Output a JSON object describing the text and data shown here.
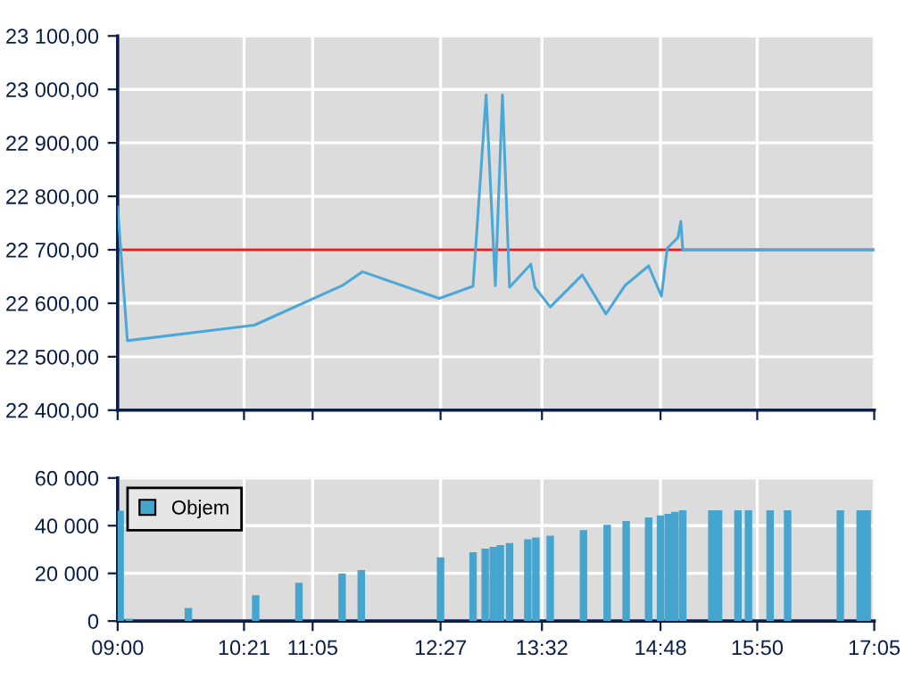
{
  "chart_data": [
    {
      "type": "line",
      "x": [
        9,
        9.104,
        10.46,
        11.398,
        11.617,
        12.436,
        12.797,
        12.937,
        13.035,
        13.111,
        13.187,
        13.414,
        13.458,
        13.622,
        13.964,
        14.217,
        14.42,
        14.673,
        14.81,
        14.872,
        14.986,
        15.017,
        15.038,
        17.0833
      ],
      "series": [
        {
          "color": "#4aa8d8",
          "values": [
            22780,
            22530,
            22559,
            22633,
            22659,
            22609,
            22632,
            22990,
            22633,
            22990,
            22630,
            22673,
            22630,
            22593,
            22653,
            22580,
            22633,
            22670,
            22613,
            22703,
            22723,
            22753,
            22700,
            22700
          ]
        }
      ],
      "ref_lines": [
        {
          "axis": "y",
          "value": 22700,
          "color": "#e02020"
        }
      ],
      "xlim": [
        9,
        17.0833
      ],
      "xticks": [
        {
          "value": 9,
          "label": null
        },
        {
          "value": 10.35,
          "label": null
        },
        {
          "value": 11.0833,
          "label": null
        },
        {
          "value": 12.45,
          "label": null
        },
        {
          "value": 13.5333,
          "label": null
        },
        {
          "value": 14.8,
          "label": null
        },
        {
          "value": 15.8333,
          "label": null
        },
        {
          "value": 17.0833,
          "label": null
        }
      ],
      "ylim": [
        22400,
        23100
      ],
      "yticks": [
        {
          "value": 22400,
          "label": "22 400,00"
        },
        {
          "value": 22500,
          "label": "22 500,00"
        },
        {
          "value": 22600,
          "label": "22 600,00"
        },
        {
          "value": 22700,
          "label": "22 700,00"
        },
        {
          "value": 22800,
          "label": "22 800,00"
        },
        {
          "value": 22900,
          "label": "22 900,00"
        },
        {
          "value": 23000,
          "label": "23 000,00"
        },
        {
          "value": 23100,
          "label": "23 100,00"
        }
      ],
      "grid": true,
      "tick_labels": "y"
    },
    {
      "type": "bar",
      "x": [
        9.027,
        9.122,
        9.756,
        10.475,
        10.937,
        11.398,
        11.603,
        12.45,
        12.797,
        12.927,
        13.013,
        13.089,
        13.187,
        13.382,
        13.468,
        13.622,
        13.977,
        14.23,
        14.433,
        14.673,
        14.8,
        14.883,
        14.955,
        15.038,
        15.348,
        15.42,
        15.627,
        15.74,
        15.971,
        16.158,
        16.721,
        16.933,
        17.008
      ],
      "series": [
        {
          "name": "Objem",
          "color": "#45a5cf",
          "values": [
            46300,
            1000,
            5500,
            10800,
            16100,
            19900,
            21400,
            26700,
            28900,
            30400,
            31100,
            31900,
            32700,
            34300,
            35000,
            35800,
            38100,
            40400,
            42000,
            43500,
            44300,
            45000,
            45800,
            46500,
            46500,
            46500,
            46500,
            46500,
            46500,
            46500,
            46500,
            46500,
            46500
          ]
        }
      ],
      "xlim": [
        9,
        17.0833
      ],
      "xticks": [
        {
          "value": 9,
          "label": "09:00"
        },
        {
          "value": 10.35,
          "label": "10:21"
        },
        {
          "value": 11.0833,
          "label": "11:05"
        },
        {
          "value": 12.45,
          "label": "12:27"
        },
        {
          "value": 13.5333,
          "label": "13:32"
        },
        {
          "value": 14.8,
          "label": "14:48"
        },
        {
          "value": 15.8333,
          "label": "15:50"
        },
        {
          "value": 17.0833,
          "label": "17:05"
        }
      ],
      "ylim": [
        0,
        60000
      ],
      "yticks": [
        0,
        {
          "value": 20000,
          "label": "20 000"
        },
        {
          "value": 40000,
          "label": "40 000"
        },
        {
          "value": 60000,
          "label": "60 000"
        }
      ],
      "grid": true,
      "legend": "top left"
    }
  ]
}
